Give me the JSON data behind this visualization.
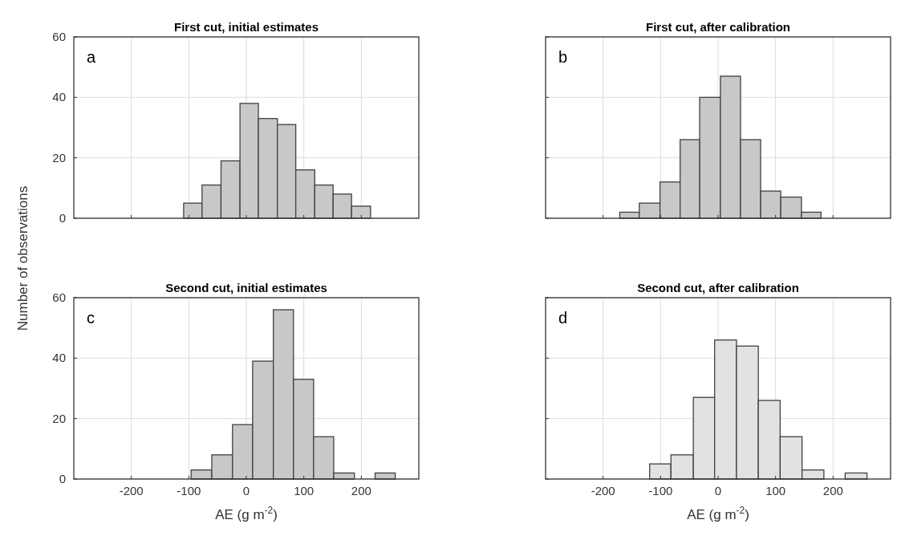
{
  "chart_data": [
    {
      "type": "histogram",
      "title": "First cut, initial estimates",
      "ylabel": "Number of observations",
      "annotations": [
        "a"
      ],
      "bins": [
        -109,
        -77,
        -44,
        -11,
        21,
        54,
        86,
        119,
        151,
        183,
        216
      ],
      "values": [
        5,
        11,
        19,
        38,
        33,
        31,
        16,
        11,
        8,
        4
      ],
      "color": "#c8c8c8",
      "xlim": [
        -300,
        300
      ],
      "xticks": [
        -200,
        -100,
        0,
        100,
        200
      ],
      "ylim": [
        0,
        60
      ],
      "yticks": [
        0,
        20,
        40,
        60
      ],
      "grid": true,
      "tick_labels": "y"
    },
    {
      "type": "histogram",
      "title": "First cut, after calibration",
      "annotations": [
        "b"
      ],
      "bins": [
        -171,
        -137,
        -101,
        -66,
        -32,
        4,
        39,
        74,
        109,
        145,
        179
      ],
      "values": [
        2,
        5,
        12,
        26,
        40,
        47,
        26,
        9,
        7,
        2
      ],
      "color": "#c8c8c8",
      "xlim": [
        -300,
        300
      ],
      "xticks": [
        -200,
        -100,
        0,
        100,
        200
      ],
      "ylim": [
        0,
        60
      ],
      "yticks": [
        0,
        20,
        40,
        60
      ],
      "grid": true,
      "tick_labels": false
    },
    {
      "type": "histogram",
      "title": "Second cut, initial estimates",
      "xlabel": "AE (g m$^{-2}$)",
      "annotations": [
        "c"
      ],
      "bins": [
        -96,
        -60,
        -24,
        11,
        47,
        82,
        117,
        152,
        188,
        224,
        259
      ],
      "values": [
        3,
        8,
        18,
        39,
        56,
        33,
        14,
        2,
        0,
        2
      ],
      "color": "#c8c8c8",
      "xlim": [
        -300,
        300
      ],
      "xticks": [
        -200,
        -100,
        0,
        100,
        200
      ],
      "ylim": [
        0,
        60
      ],
      "yticks": [
        0,
        20,
        40,
        60
      ],
      "grid": true
    },
    {
      "type": "histogram",
      "title": "Second cut, after calibration",
      "xlabel": "AE (g m$^{-2}$)",
      "annotations": [
        "d"
      ],
      "bins": [
        -119,
        -82,
        -43,
        -6,
        32,
        70,
        108,
        146,
        184,
        221,
        259
      ],
      "values": [
        5,
        8,
        27,
        46,
        44,
        26,
        14,
        3,
        0,
        2
      ],
      "color": "#e2e2e2",
      "xlim": [
        -300,
        300
      ],
      "xticks": [
        -200,
        -100,
        0,
        100,
        200
      ],
      "ylim": [
        0,
        60
      ],
      "yticks": [
        0,
        20,
        40,
        60
      ],
      "grid": true,
      "tick_labels": "x"
    }
  ]
}
